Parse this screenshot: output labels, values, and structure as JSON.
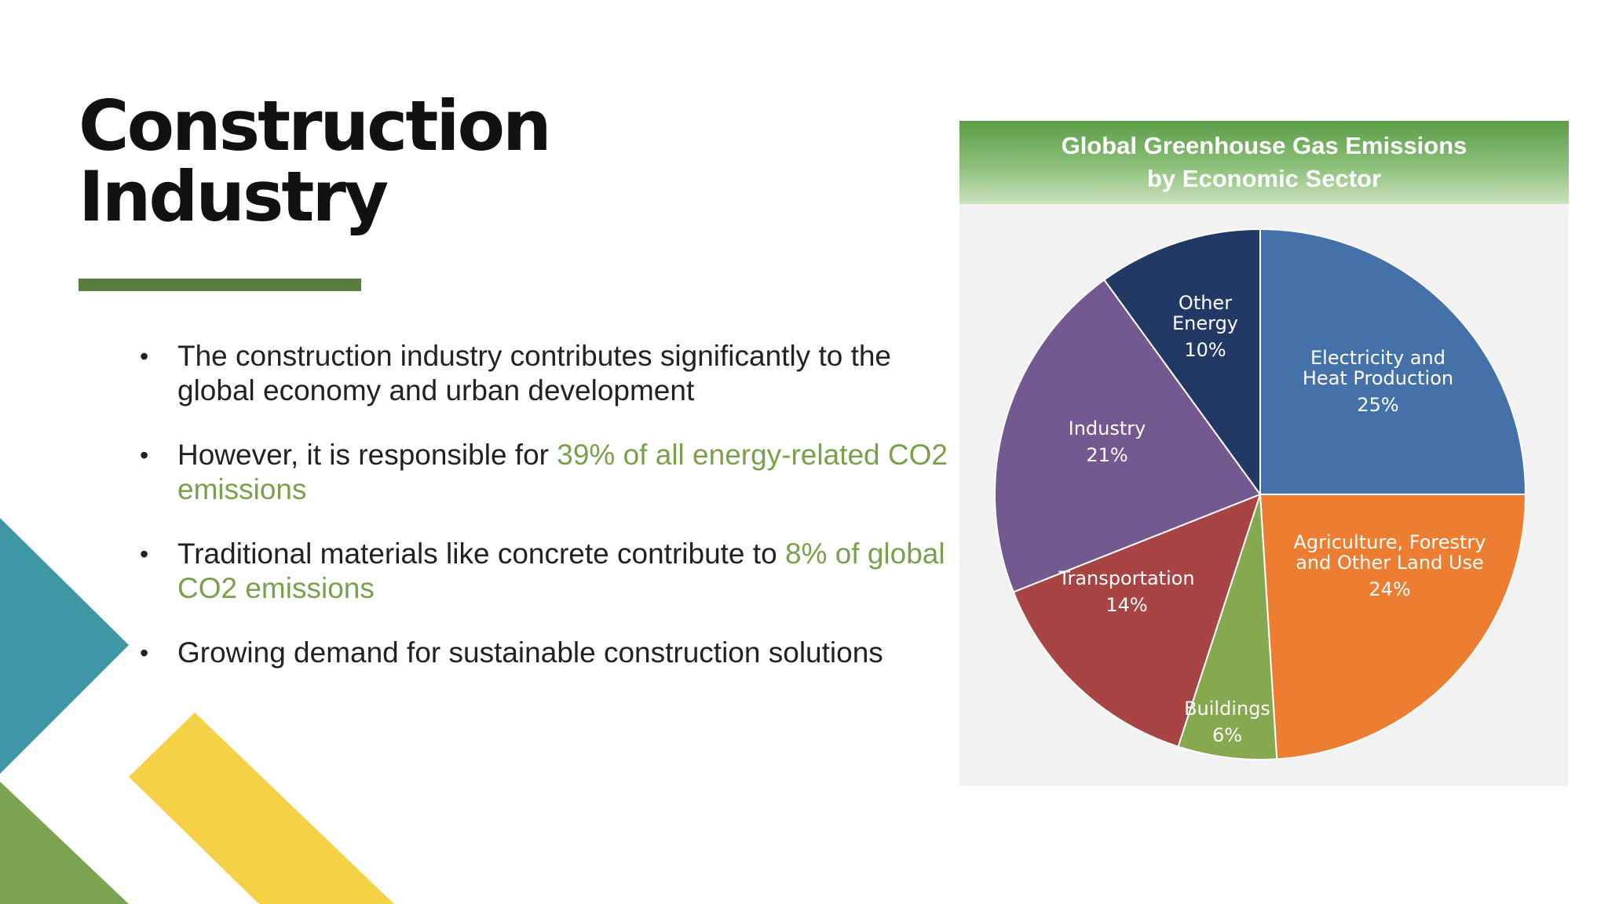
{
  "slide": {
    "title_lines": [
      "Construction",
      "Industry"
    ],
    "accent_color": "#5a7d3e",
    "highlight_color": "#7aa04e"
  },
  "bullets": [
    {
      "text": "The construction industry contributes significantly to the global economy and urban development",
      "highlight": ""
    },
    {
      "text": "However, it is responsible for ",
      "highlight": "39% of all energy-related CO2 emissions"
    },
    {
      "text": "Traditional materials like concrete contribute to ",
      "highlight": "8% of global CO2 emissions"
    },
    {
      "text": "Growing demand for sustainable construction solutions",
      "highlight": ""
    }
  ],
  "chart_data": {
    "type": "pie",
    "title": "Global Greenhouse Gas Emissions",
    "subtitle": "by Economic Sector",
    "start_angle_deg": 0,
    "direction": "clockwise",
    "slices": [
      {
        "label_lines": [
          "Electricity and",
          "Heat Production"
        ],
        "value_label": "25%",
        "value": 25,
        "color": "#4472a8"
      },
      {
        "label_lines": [
          "Agriculture, Forestry",
          "and Other Land Use"
        ],
        "value_label": "24%",
        "value": 24,
        "color": "#ed7d31"
      },
      {
        "label_lines": [
          "Buildings"
        ],
        "value_label": "6%",
        "value": 6,
        "color": "#86a84e"
      },
      {
        "label_lines": [
          "Transportation"
        ],
        "value_label": "14%",
        "value": 14,
        "color": "#a84444"
      },
      {
        "label_lines": [
          "Industry"
        ],
        "value_label": "21%",
        "value": 21,
        "color": "#735990"
      },
      {
        "label_lines": [
          "Other",
          "Energy"
        ],
        "value_label": "10%",
        "value": 10,
        "color": "#213964"
      }
    ]
  },
  "decor": {
    "teal": "#3f97a6",
    "green": "#7aa44f",
    "yellow": "#f5d245"
  }
}
